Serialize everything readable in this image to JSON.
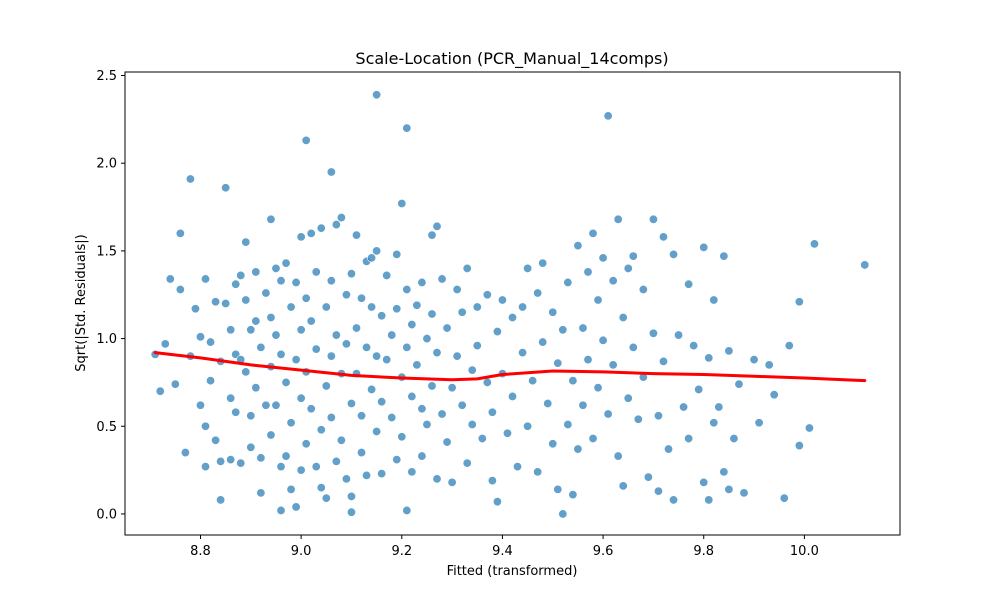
{
  "chart_data": {
    "type": "scatter",
    "title": "Scale-Location (PCR_Manual_14comps)",
    "xlabel": "Fitted (transformed)",
    "ylabel": "Sqrt(|Std. Residuals|)",
    "xlim": [
      8.65,
      10.19
    ],
    "ylim": [
      -0.12,
      2.52
    ],
    "xticks": [
      8.8,
      9.0,
      9.2,
      9.4,
      9.6,
      9.8,
      10.0
    ],
    "xtick_labels": [
      "8.8",
      "9.0",
      "9.2",
      "9.4",
      "9.6",
      "9.8",
      "10.0"
    ],
    "yticks": [
      0.0,
      0.5,
      1.0,
      1.5,
      2.0,
      2.5
    ],
    "ytick_labels": [
      "0.0",
      "0.5",
      "1.0",
      "1.5",
      "2.0",
      "2.5"
    ],
    "grid": false,
    "legend": "none",
    "colors": {
      "points": "#1f77b4",
      "point_edge": "#ffffff",
      "trend": "#ff0000",
      "axes": "#000000"
    },
    "point_alpha": 0.7,
    "series": [
      {
        "kind": "points",
        "points": [
          [
            8.71,
            0.91
          ],
          [
            8.72,
            0.7
          ],
          [
            8.73,
            0.97
          ],
          [
            8.74,
            1.34
          ],
          [
            8.75,
            0.74
          ],
          [
            8.76,
            1.28
          ],
          [
            8.76,
            1.6
          ],
          [
            8.77,
            0.35
          ],
          [
            8.78,
            1.91
          ],
          [
            8.78,
            0.9
          ],
          [
            8.79,
            1.17
          ],
          [
            8.8,
            0.62
          ],
          [
            8.8,
            1.01
          ],
          [
            8.81,
            1.34
          ],
          [
            8.81,
            0.5
          ],
          [
            8.81,
            0.27
          ],
          [
            8.82,
            0.98
          ],
          [
            8.82,
            0.76
          ],
          [
            8.83,
            1.21
          ],
          [
            8.83,
            0.42
          ],
          [
            8.84,
            0.87
          ],
          [
            8.84,
            0.3
          ],
          [
            8.84,
            0.08
          ],
          [
            8.85,
            1.86
          ],
          [
            8.85,
            1.2
          ],
          [
            8.86,
            0.66
          ],
          [
            8.86,
            1.05
          ],
          [
            8.86,
            0.31
          ],
          [
            8.87,
            1.31
          ],
          [
            8.87,
            0.91
          ],
          [
            8.87,
            0.58
          ],
          [
            8.88,
            1.36
          ],
          [
            8.88,
            0.88
          ],
          [
            8.88,
            0.29
          ],
          [
            8.89,
            1.55
          ],
          [
            8.89,
            1.22
          ],
          [
            8.89,
            0.81
          ],
          [
            8.9,
            0.56
          ],
          [
            8.9,
            1.05
          ],
          [
            8.9,
            0.38
          ],
          [
            8.91,
            1.38
          ],
          [
            8.91,
            1.1
          ],
          [
            8.91,
            0.72
          ],
          [
            8.92,
            0.12
          ],
          [
            8.92,
            0.32
          ],
          [
            8.92,
            0.95
          ],
          [
            8.93,
            1.26
          ],
          [
            8.93,
            0.62
          ],
          [
            8.94,
            1.68
          ],
          [
            8.94,
            1.12
          ],
          [
            8.94,
            0.84
          ],
          [
            8.94,
            0.45
          ],
          [
            8.95,
            1.4
          ],
          [
            8.95,
            1.02
          ],
          [
            8.95,
            0.62
          ],
          [
            8.96,
            0.27
          ],
          [
            8.96,
            1.33
          ],
          [
            8.96,
            0.91
          ],
          [
            8.96,
            0.02
          ],
          [
            8.97,
            1.43
          ],
          [
            8.97,
            0.75
          ],
          [
            8.97,
            0.33
          ],
          [
            8.98,
            1.18
          ],
          [
            8.98,
            0.52
          ],
          [
            8.98,
            0.14
          ],
          [
            8.99,
            1.32
          ],
          [
            8.99,
            0.88
          ],
          [
            8.99,
            0.04
          ],
          [
            9.0,
            1.58
          ],
          [
            9.0,
            1.05
          ],
          [
            9.0,
            0.66
          ],
          [
            9.0,
            0.25
          ],
          [
            9.01,
            2.13
          ],
          [
            9.01,
            1.23
          ],
          [
            9.01,
            0.81
          ],
          [
            9.01,
            0.4
          ],
          [
            9.02,
            1.6
          ],
          [
            9.02,
            1.1
          ],
          [
            9.02,
            0.6
          ],
          [
            9.03,
            0.27
          ],
          [
            9.03,
            1.38
          ],
          [
            9.03,
            0.94
          ],
          [
            9.04,
            0.15
          ],
          [
            9.04,
            1.63
          ],
          [
            9.04,
            0.48
          ],
          [
            9.05,
            1.18
          ],
          [
            9.05,
            0.73
          ],
          [
            9.05,
            0.09
          ],
          [
            9.06,
            1.95
          ],
          [
            9.06,
            1.33
          ],
          [
            9.06,
            0.9
          ],
          [
            9.06,
            0.55
          ],
          [
            9.07,
            1.65
          ],
          [
            9.07,
            1.02
          ],
          [
            9.07,
            0.3
          ],
          [
            9.08,
            1.69
          ],
          [
            9.08,
            0.8
          ],
          [
            9.08,
            0.42
          ],
          [
            9.09,
            1.25
          ],
          [
            9.09,
            0.97
          ],
          [
            9.09,
            0.2
          ],
          [
            9.1,
            1.37
          ],
          [
            9.1,
            0.63
          ],
          [
            9.1,
            0.1
          ],
          [
            9.1,
            0.01
          ],
          [
            9.11,
            1.59
          ],
          [
            9.11,
            1.06
          ],
          [
            9.11,
            0.8
          ],
          [
            9.12,
            0.35
          ],
          [
            9.12,
            1.23
          ],
          [
            9.12,
            0.56
          ],
          [
            9.13,
            1.44
          ],
          [
            9.13,
            0.95
          ],
          [
            9.13,
            0.22
          ],
          [
            9.14,
            1.46
          ],
          [
            9.14,
            1.18
          ],
          [
            9.14,
            0.71
          ],
          [
            9.15,
            2.39
          ],
          [
            9.15,
            1.5
          ],
          [
            9.15,
            0.9
          ],
          [
            9.15,
            0.47
          ],
          [
            9.16,
            1.13
          ],
          [
            9.16,
            0.64
          ],
          [
            9.16,
            0.23
          ],
          [
            9.17,
            1.36
          ],
          [
            9.17,
            0.88
          ],
          [
            9.18,
            1.02
          ],
          [
            9.18,
            0.55
          ],
          [
            9.19,
            1.48
          ],
          [
            9.19,
            1.17
          ],
          [
            9.19,
            0.31
          ],
          [
            9.2,
            1.77
          ],
          [
            9.2,
            0.78
          ],
          [
            9.2,
            0.44
          ],
          [
            9.21,
            2.2
          ],
          [
            9.21,
            1.28
          ],
          [
            9.21,
            0.95
          ],
          [
            9.21,
            0.02
          ],
          [
            9.22,
            1.08
          ],
          [
            9.22,
            0.67
          ],
          [
            9.22,
            0.24
          ],
          [
            9.23,
            1.19
          ],
          [
            9.23,
            0.85
          ],
          [
            9.24,
            1.32
          ],
          [
            9.24,
            0.6
          ],
          [
            9.24,
            0.33
          ],
          [
            9.25,
            1.0
          ],
          [
            9.25,
            0.51
          ],
          [
            9.26,
            1.59
          ],
          [
            9.26,
            1.14
          ],
          [
            9.26,
            0.73
          ],
          [
            9.27,
            1.64
          ],
          [
            9.27,
            0.92
          ],
          [
            9.27,
            0.2
          ],
          [
            9.28,
            1.34
          ],
          [
            9.28,
            0.57
          ],
          [
            9.29,
            0.41
          ],
          [
            9.29,
            1.06
          ],
          [
            9.3,
            0.72
          ],
          [
            9.3,
            0.18
          ],
          [
            9.31,
            1.28
          ],
          [
            9.31,
            0.9
          ],
          [
            9.32,
            0.62
          ],
          [
            9.32,
            1.15
          ],
          [
            9.33,
            1.4
          ],
          [
            9.33,
            0.29
          ],
          [
            9.34,
            0.82
          ],
          [
            9.34,
            0.51
          ],
          [
            9.35,
            1.18
          ],
          [
            9.35,
            0.96
          ],
          [
            9.36,
            0.43
          ],
          [
            9.37,
            1.25
          ],
          [
            9.37,
            0.75
          ],
          [
            9.38,
            0.19
          ],
          [
            9.38,
            0.58
          ],
          [
            9.39,
            1.04
          ],
          [
            9.39,
            0.07
          ],
          [
            9.4,
            1.22
          ],
          [
            9.4,
            0.8
          ],
          [
            9.41,
            0.46
          ],
          [
            9.42,
            0.67
          ],
          [
            9.42,
            1.12
          ],
          [
            9.43,
            0.27
          ],
          [
            9.44,
            0.92
          ],
          [
            9.44,
            1.18
          ],
          [
            9.45,
            0.5
          ],
          [
            9.45,
            1.4
          ],
          [
            9.46,
            0.76
          ],
          [
            9.47,
            1.26
          ],
          [
            9.47,
            0.24
          ],
          [
            9.48,
            1.43
          ],
          [
            9.48,
            0.98
          ],
          [
            9.49,
            0.63
          ],
          [
            9.5,
            0.4
          ],
          [
            9.5,
            1.15
          ],
          [
            9.51,
            0.86
          ],
          [
            9.51,
            0.14
          ],
          [
            9.52,
            1.05
          ],
          [
            9.52,
            0.0
          ],
          [
            9.53,
            0.51
          ],
          [
            9.53,
            1.32
          ],
          [
            9.54,
            0.76
          ],
          [
            9.54,
            0.11
          ],
          [
            9.55,
            1.53
          ],
          [
            9.55,
            0.37
          ],
          [
            9.56,
            1.06
          ],
          [
            9.56,
            0.62
          ],
          [
            9.57,
            1.38
          ],
          [
            9.57,
            0.88
          ],
          [
            9.58,
            1.6
          ],
          [
            9.58,
            0.43
          ],
          [
            9.59,
            1.22
          ],
          [
            9.59,
            0.72
          ],
          [
            9.6,
            1.46
          ],
          [
            9.6,
            0.99
          ],
          [
            9.61,
            0.57
          ],
          [
            9.61,
            2.27
          ],
          [
            9.62,
            1.33
          ],
          [
            9.62,
            0.85
          ],
          [
            9.63,
            1.68
          ],
          [
            9.63,
            0.33
          ],
          [
            9.64,
            1.12
          ],
          [
            9.64,
            0.16
          ],
          [
            9.65,
            1.4
          ],
          [
            9.65,
            0.66
          ],
          [
            9.66,
            1.47
          ],
          [
            9.66,
            0.95
          ],
          [
            9.67,
            0.54
          ],
          [
            9.68,
            1.28
          ],
          [
            9.68,
            0.78
          ],
          [
            9.69,
            0.21
          ],
          [
            9.7,
            1.68
          ],
          [
            9.7,
            1.03
          ],
          [
            9.71,
            0.13
          ],
          [
            9.71,
            0.56
          ],
          [
            9.72,
            1.58
          ],
          [
            9.72,
            0.87
          ],
          [
            9.73,
            0.37
          ],
          [
            9.74,
            1.48
          ],
          [
            9.74,
            0.08
          ],
          [
            9.75,
            1.02
          ],
          [
            9.76,
            0.61
          ],
          [
            9.77,
            1.31
          ],
          [
            9.77,
            0.43
          ],
          [
            9.78,
            0.96
          ],
          [
            9.79,
            0.71
          ],
          [
            9.8,
            1.52
          ],
          [
            9.8,
            0.18
          ],
          [
            9.81,
            0.89
          ],
          [
            9.81,
            0.08
          ],
          [
            9.82,
            1.22
          ],
          [
            9.82,
            0.52
          ],
          [
            9.83,
            0.61
          ],
          [
            9.84,
            1.47
          ],
          [
            9.84,
            0.24
          ],
          [
            9.85,
            0.93
          ],
          [
            9.85,
            0.14
          ],
          [
            9.86,
            0.43
          ],
          [
            9.87,
            0.74
          ],
          [
            9.88,
            0.12
          ],
          [
            9.9,
            0.88
          ],
          [
            9.91,
            0.52
          ],
          [
            9.93,
            0.85
          ],
          [
            9.94,
            0.68
          ],
          [
            9.96,
            0.09
          ],
          [
            9.97,
            0.96
          ],
          [
            9.99,
            1.21
          ],
          [
            9.99,
            0.39
          ],
          [
            10.01,
            0.49
          ],
          [
            10.02,
            1.54
          ],
          [
            10.12,
            1.42
          ]
        ]
      },
      {
        "kind": "trend",
        "points": [
          [
            8.71,
            0.92
          ],
          [
            8.8,
            0.89
          ],
          [
            8.9,
            0.85
          ],
          [
            9.0,
            0.82
          ],
          [
            9.1,
            0.79
          ],
          [
            9.2,
            0.775
          ],
          [
            9.3,
            0.765
          ],
          [
            9.35,
            0.77
          ],
          [
            9.4,
            0.795
          ],
          [
            9.5,
            0.815
          ],
          [
            9.6,
            0.81
          ],
          [
            9.7,
            0.8
          ],
          [
            9.8,
            0.795
          ],
          [
            9.9,
            0.785
          ],
          [
            10.0,
            0.775
          ],
          [
            10.12,
            0.76
          ]
        ]
      }
    ]
  }
}
